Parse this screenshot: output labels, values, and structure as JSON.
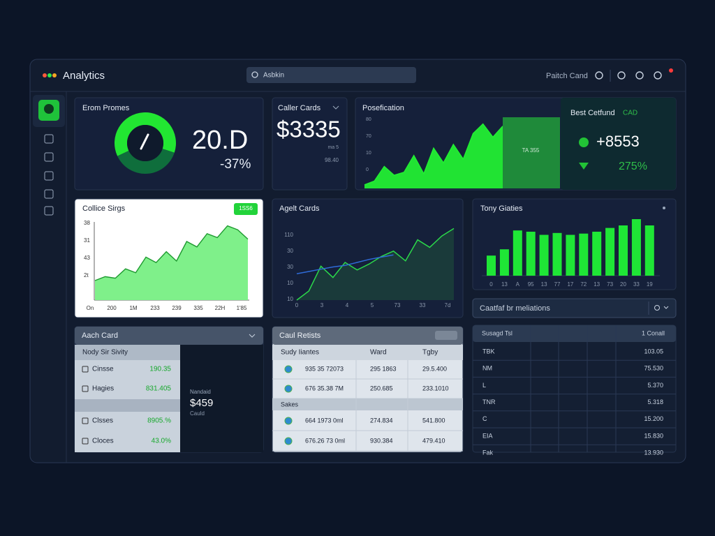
{
  "app": {
    "title": "Analytics",
    "search": "Asbkin",
    "user": "Paitch Cand"
  },
  "promes": {
    "title": "Erom Promes",
    "value": "20.D",
    "change": "-37%",
    "donut": {
      "values": [
        62,
        38
      ],
      "colors": [
        "#22e632",
        "#0f6e3c"
      ]
    }
  },
  "caller": {
    "title": "Caller Cards",
    "value": "$3335",
    "note": "ma 5",
    "sub": "98.40"
  },
  "posef": {
    "title": "Posefication",
    "yticks": [
      "80",
      "70",
      "10",
      "0"
    ],
    "ylim": [
      0,
      100
    ],
    "values": [
      5,
      10,
      30,
      18,
      22,
      45,
      20,
      55,
      35,
      60,
      40,
      75,
      88,
      70,
      85
    ],
    "color": "#22ee33",
    "panel": "TA 355"
  },
  "best": {
    "title": "Best Cetfund",
    "tag": "CAD",
    "value": "+8553",
    "pct": "275%"
  },
  "collice": {
    "title": "Collice Sirgs",
    "button": "1SS6",
    "yticks": [
      "38",
      "31",
      "43",
      "2t"
    ],
    "xticks": [
      "On",
      "200",
      "1M",
      "233",
      "239",
      "335",
      "22H",
      "1'85"
    ],
    "ylim": [
      0,
      100
    ],
    "values": [
      25,
      30,
      28,
      40,
      35,
      55,
      48,
      62,
      50,
      75,
      68,
      85,
      80,
      95,
      90,
      78
    ],
    "color": "#1e9a30"
  },
  "agelt": {
    "title": "Agelt Cards",
    "yticks": [
      "110",
      "30",
      "30",
      "10",
      "10"
    ],
    "xticks": [
      "0",
      "3",
      "4",
      "5",
      "73",
      "33",
      "7d"
    ],
    "ylim": [
      0,
      100
    ],
    "series": [
      {
        "color": "#2bd84a",
        "values": [
          0,
          12,
          45,
          30,
          50,
          40,
          48,
          58,
          65,
          52,
          80,
          70,
          85,
          95
        ]
      },
      {
        "color": "#2f6bd8",
        "values": [
          35,
          38,
          41,
          44,
          46,
          50,
          54,
          57,
          60
        ]
      }
    ]
  },
  "tony": {
    "title": "Tony Giaties",
    "xticks": [
      "0",
      "13",
      "A",
      "95",
      "13",
      "77",
      "17",
      "72",
      "13",
      "73",
      "20",
      "33",
      "19"
    ],
    "ylim": [
      0,
      100
    ],
    "values": [
      32,
      42,
      72,
      70,
      65,
      68,
      65,
      67,
      70,
      76,
      80,
      90,
      80
    ],
    "color": "#1fe636"
  },
  "search2": "Caatfaf br meliations",
  "aach": {
    "title": "Aach Card",
    "header": "Nody Sir Sivity",
    "rows": [
      {
        "label": "Cinsse",
        "value": "190.35"
      },
      {
        "label": "Hagies",
        "value": "831.405"
      },
      {
        "label": "Clsses",
        "value": "8905.%"
      },
      {
        "label": "Cloces",
        "value": "43.0%"
      }
    ],
    "panel": {
      "label": "Nandaid",
      "value": "$459",
      "sub": "Cauld"
    }
  },
  "caul": {
    "title": "Caul Retists",
    "header": [
      "Sudy Iiantes",
      "Ward",
      "Tgby"
    ],
    "rows": [
      [
        "935 35 72073",
        "295 1863",
        "29.5.400"
      ],
      [
        "676 35.38 7M",
        "250.685",
        "233.1010"
      ]
    ],
    "section": "Sakes",
    "rows2": [
      [
        "664 1973 0ml",
        "274.834",
        "541.800"
      ],
      [
        "676.26 73 0ml",
        "930.384",
        "479.410"
      ]
    ]
  },
  "table": {
    "header": [
      "Susagd Tsl",
      "1 Conall"
    ],
    "rows": [
      [
        "TBK",
        "103.05"
      ],
      [
        "NM",
        "75.530"
      ],
      [
        "L",
        "5.370"
      ],
      [
        "TNR",
        "5.318"
      ],
      [
        "C",
        "15.200"
      ],
      [
        "EIA",
        "15.830"
      ],
      [
        "Fak",
        "13.930"
      ]
    ]
  }
}
